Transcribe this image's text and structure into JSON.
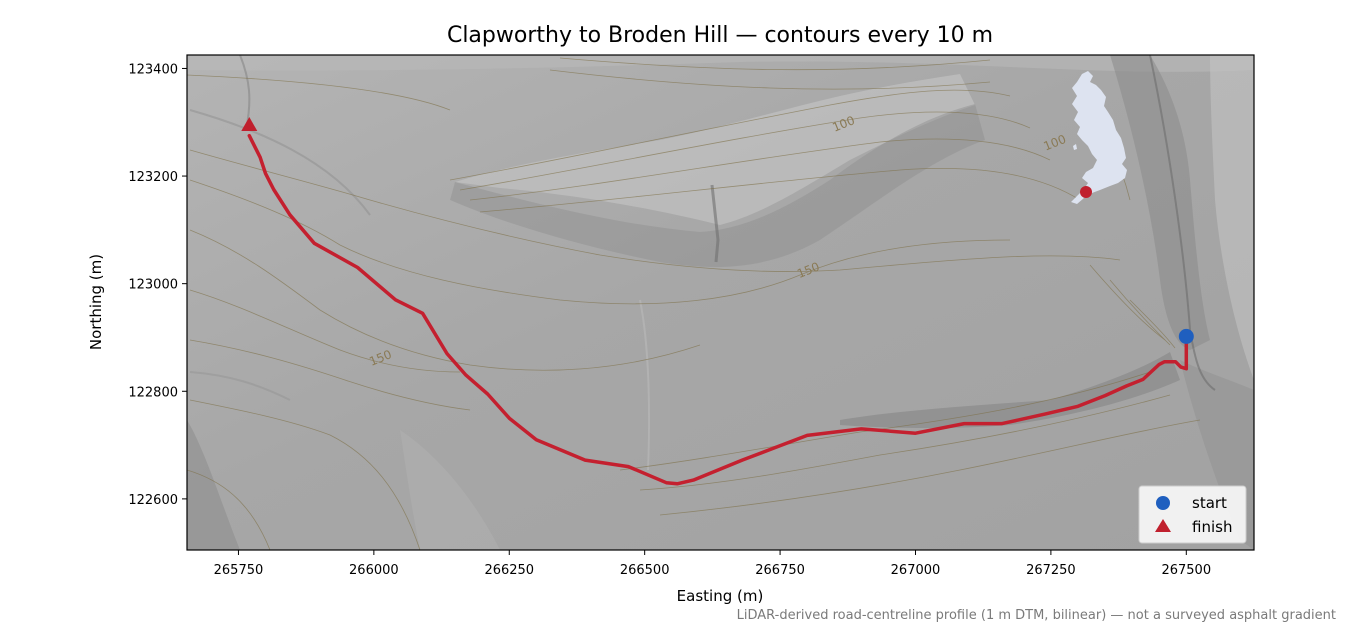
{
  "title": "Clapworthy to Broden Hill — contours every 10 m",
  "footnote": "LiDAR-derived road-centreline profile (1 m DTM, bilinear) — not a surveyed asphalt gradient",
  "axes": {
    "xlabel": "Easting (m)",
    "ylabel": "Northing (m)",
    "xlim": [
      265655,
      267625
    ],
    "ylim": [
      122505,
      123425
    ],
    "xticks": [
      265750,
      266000,
      266250,
      266500,
      266750,
      267000,
      267250,
      267500
    ],
    "yticks": [
      122600,
      122800,
      123000,
      123200,
      123400
    ],
    "xtick_labels": [
      "265750",
      "266000",
      "266250",
      "266500",
      "266750",
      "267000",
      "267250",
      "267500"
    ],
    "ytick_labels": [
      "122600",
      "122800",
      "123000",
      "123200",
      "123400"
    ]
  },
  "contour_labels": [
    {
      "text": "100",
      "e": 266870,
      "n": 123290
    },
    {
      "text": "100",
      "e": 267260,
      "n": 123255
    },
    {
      "text": "150",
      "e": 266805,
      "n": 123018
    },
    {
      "text": "150",
      "e": 266015,
      "n": 122855
    }
  ],
  "legend": {
    "location": "bottom-right",
    "items": [
      {
        "label": "start",
        "marker": "circle",
        "color": "#1f5fbf"
      },
      {
        "label": "finish",
        "marker": "triangle",
        "color": "#c0202e"
      }
    ]
  },
  "inset": {
    "shows": "Great Britain outline",
    "location_marker_color": "#c0202e",
    "land_color": "#dde3f0"
  },
  "colors": {
    "route": "#c4202f",
    "start": "#1f5fbf",
    "finish": "#c0202e",
    "contour": "#7d6f45"
  },
  "chart_data": {
    "type": "line",
    "title": "Clapworthy to Broden Hill — contours every 10 m",
    "xlabel": "Easting (m)",
    "ylabel": "Northing (m)",
    "xlim": [
      265655,
      267625
    ],
    "ylim": [
      122505,
      123425
    ],
    "series": [
      {
        "x": [
          267500,
          267500,
          267490,
          267480,
          267460,
          267450,
          267420,
          267390,
          267350,
          267300,
          267240,
          267160,
          267090,
          267000,
          266900,
          266800,
          266740,
          266680,
          266590,
          266560,
          266540,
          266470,
          266390,
          266300,
          266250,
          266210,
          266170,
          266135,
          266090,
          266040,
          265970,
          265890,
          265845,
          265815,
          265800,
          265790,
          265770
        ],
        "y": [
          122898,
          122842,
          122845,
          122855,
          122855,
          122850,
          122822,
          122810,
          122792,
          122772,
          122758,
          122740,
          122740,
          122722,
          122730,
          122718,
          122695,
          122672,
          122635,
          122628,
          122630,
          122660,
          122672,
          122710,
          122750,
          122795,
          122830,
          122870,
          122945,
          122970,
          123030,
          123075,
          123128,
          123175,
          123205,
          123235,
          123275
        ]
      }
    ],
    "start": {
      "x": 267500,
      "y": 122902
    },
    "finish": {
      "x": 265770,
      "y": 123295
    },
    "grid": false
  }
}
